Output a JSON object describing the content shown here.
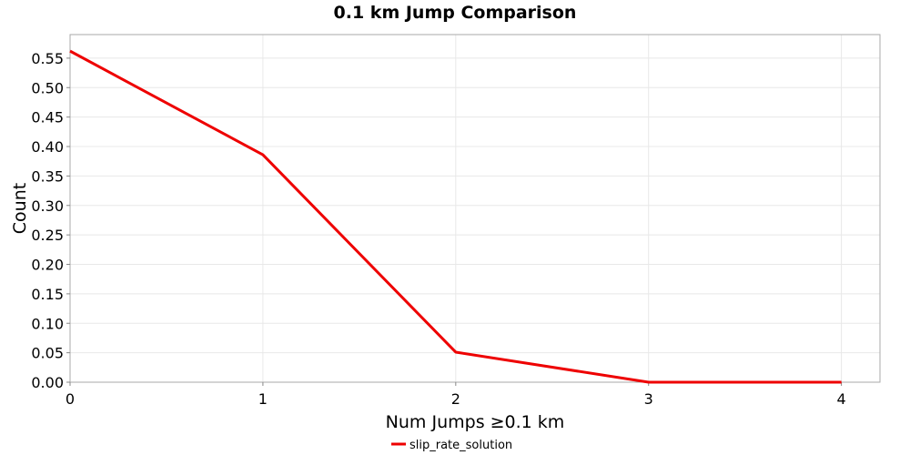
{
  "chart_data": {
    "type": "line",
    "title": "0.1 km Jump Comparison",
    "xlabel": "Num Jumps ≥0.1 km",
    "ylabel": "Count",
    "xlim": [
      0,
      4.2
    ],
    "ylim": [
      0,
      0.59
    ],
    "x_ticks": [
      "0",
      "1",
      "2",
      "3",
      "4"
    ],
    "y_ticks": [
      "0.00",
      "0.05",
      "0.10",
      "0.15",
      "0.20",
      "0.25",
      "0.30",
      "0.35",
      "0.40",
      "0.45",
      "0.50",
      "0.55"
    ],
    "grid": true,
    "legend_position": "bottom-center",
    "series": [
      {
        "name": "slip_rate_solution",
        "color": "#ee0000",
        "x": [
          0,
          1,
          2,
          3,
          4
        ],
        "y": [
          0.562,
          0.386,
          0.051,
          0.0,
          0.0
        ]
      }
    ]
  }
}
